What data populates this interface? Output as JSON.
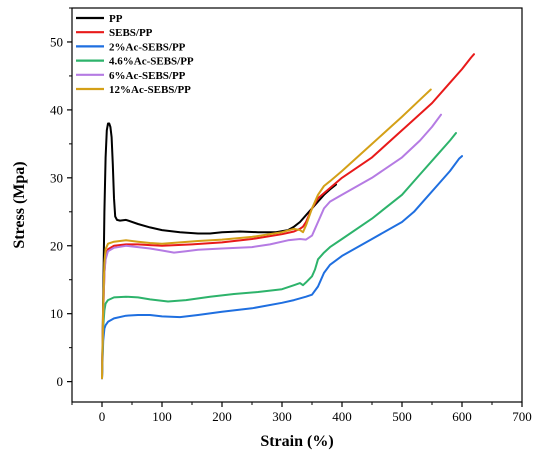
{
  "chart_data": {
    "type": "line",
    "xlabel": "Strain (%)",
    "ylabel": "Stress (Mpa)",
    "xlim": [
      -50,
      700
    ],
    "ylim": [
      -3,
      55
    ],
    "xticks": [
      0,
      100,
      200,
      300,
      400,
      500,
      600,
      700
    ],
    "yticks": [
      0,
      10,
      20,
      30,
      40,
      50
    ],
    "grid": false,
    "legend_position": "top-left",
    "series": [
      {
        "name": "PP",
        "color": "#000000",
        "x": [
          0,
          2,
          4,
          6,
          8,
          10,
          12,
          14,
          16,
          18,
          20,
          22,
          25,
          30,
          40,
          60,
          80,
          100,
          130,
          160,
          180,
          200,
          230,
          260,
          290,
          310,
          320,
          330,
          340,
          350,
          360,
          370,
          380,
          390
        ],
        "y": [
          0.5,
          12,
          25,
          33,
          37,
          38,
          38,
          37.5,
          36,
          32,
          27,
          24.3,
          23.8,
          23.7,
          23.8,
          23.2,
          22.7,
          22.3,
          22,
          21.8,
          21.8,
          22,
          22.1,
          22,
          22,
          22.3,
          22.8,
          23.5,
          24.5,
          25.5,
          26.5,
          27.5,
          28.3,
          29
        ]
      },
      {
        "name": "SEBS/PP",
        "color": "#e81a1a",
        "x": [
          0,
          2,
          4,
          6,
          10,
          20,
          40,
          60,
          80,
          100,
          150,
          200,
          250,
          300,
          320,
          330,
          335,
          340,
          350,
          360,
          380,
          400,
          450,
          500,
          550,
          580,
          600,
          615,
          620
        ],
        "y": [
          0.5,
          10,
          16,
          18.5,
          19.5,
          20,
          20.2,
          20.2,
          20.1,
          20,
          20.2,
          20.5,
          21,
          21.7,
          22.1,
          22.5,
          22.8,
          23.5,
          25.5,
          27,
          28.5,
          30,
          33,
          37,
          41,
          44,
          46,
          47.7,
          48.2
        ]
      },
      {
        "name": "2%Ac-SEBS/PP",
        "color": "#1f6fe0",
        "x": [
          0,
          2,
          4,
          6,
          10,
          20,
          40,
          60,
          80,
          100,
          130,
          160,
          200,
          250,
          300,
          320,
          340,
          350,
          360,
          365,
          370,
          380,
          400,
          450,
          500,
          520,
          540,
          560,
          580,
          595,
          600
        ],
        "y": [
          0.5,
          6,
          7.8,
          8.3,
          8.8,
          9.3,
          9.7,
          9.8,
          9.8,
          9.6,
          9.5,
          9.8,
          10.3,
          10.8,
          11.6,
          12,
          12.5,
          12.8,
          14,
          15,
          16,
          17.2,
          18.5,
          21,
          23.5,
          25,
          27,
          29,
          31,
          32.8,
          33.2
        ]
      },
      {
        "name": "4.6%Ac-SEBS/PP",
        "color": "#2db36b",
        "x": [
          0,
          2,
          4,
          6,
          10,
          20,
          40,
          60,
          80,
          110,
          140,
          180,
          220,
          260,
          300,
          320,
          330,
          335,
          340,
          350,
          355,
          360,
          370,
          380,
          400,
          450,
          500,
          530,
          560,
          580,
          590
        ],
        "y": [
          0.5,
          8,
          10.5,
          11.5,
          12,
          12.4,
          12.5,
          12.4,
          12.1,
          11.8,
          12,
          12.5,
          12.9,
          13.2,
          13.6,
          14.2,
          14.5,
          14.2,
          14.6,
          15.5,
          16.5,
          18,
          19,
          19.8,
          21,
          24,
          27.5,
          30.5,
          33.5,
          35.5,
          36.6
        ]
      },
      {
        "name": "6%Ac-SEBS/PP",
        "color": "#b57be3",
        "x": [
          0,
          2,
          4,
          6,
          10,
          20,
          40,
          60,
          80,
          100,
          120,
          140,
          160,
          200,
          250,
          280,
          310,
          330,
          340,
          350,
          355,
          360,
          365,
          370,
          380,
          400,
          450,
          500,
          530,
          550,
          565
        ],
        "y": [
          0.5,
          10,
          16,
          18,
          19.2,
          19.7,
          20,
          19.8,
          19.6,
          19.3,
          19,
          19.2,
          19.4,
          19.6,
          19.8,
          20.2,
          20.8,
          21,
          20.9,
          21.5,
          22.5,
          23.5,
          24.5,
          25.5,
          26.5,
          27.5,
          30,
          33,
          35.5,
          37.5,
          39.3
        ]
      },
      {
        "name": "12%Ac-SEBS/PP",
        "color": "#d4a017",
        "x": [
          0,
          2,
          4,
          6,
          10,
          20,
          40,
          60,
          80,
          100,
          130,
          160,
          200,
          250,
          300,
          320,
          330,
          335,
          340,
          350,
          360,
          370,
          380,
          400,
          450,
          500,
          530,
          548
        ],
        "y": [
          0.5,
          11,
          17.5,
          19.5,
          20.3,
          20.6,
          20.8,
          20.6,
          20.4,
          20.3,
          20.5,
          20.7,
          20.9,
          21.3,
          22,
          22.5,
          22.3,
          22,
          23,
          25.5,
          27.5,
          28.8,
          29.5,
          31,
          35,
          39,
          41.5,
          43
        ]
      }
    ]
  }
}
